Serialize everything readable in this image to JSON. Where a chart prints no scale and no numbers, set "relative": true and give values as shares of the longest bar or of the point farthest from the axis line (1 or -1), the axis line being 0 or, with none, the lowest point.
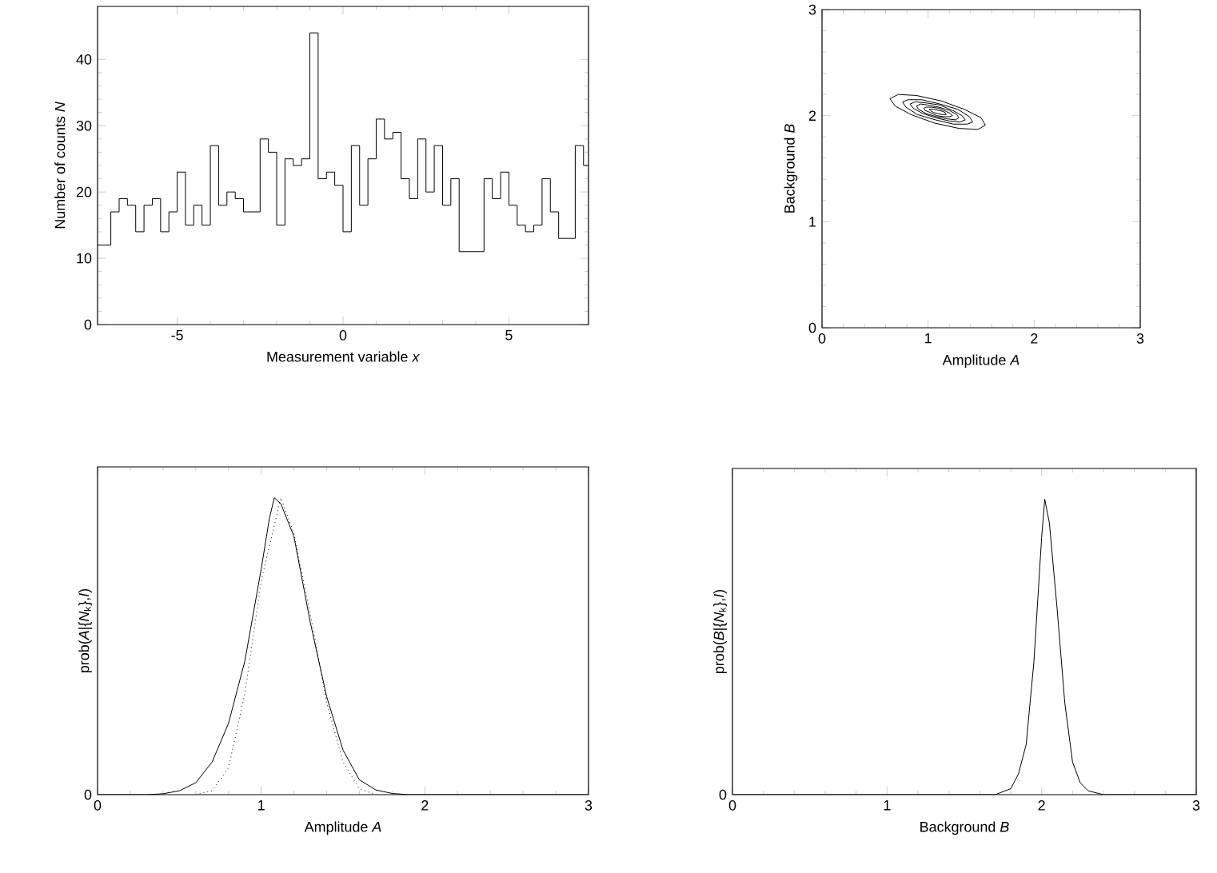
{
  "chart_data": [
    {
      "type": "step",
      "xlabel": "Measurement variable  *x*",
      "ylabel": "Number of counts  *N*",
      "color": "#000000",
      "x": [
        -7.4,
        -7.0,
        -6.75,
        -6.5,
        -6.25,
        -6.0,
        -5.75,
        -5.5,
        -5.25,
        -5.0,
        -4.75,
        -4.5,
        -4.25,
        -4.0,
        -3.75,
        -3.5,
        -3.25,
        -3.0,
        -2.75,
        -2.5,
        -2.25,
        -2.0,
        -1.75,
        -1.5,
        -1.25,
        -1.0,
        -0.75,
        -0.5,
        -0.25,
        0,
        0.25,
        0.5,
        0.75,
        1.0,
        1.25,
        1.5,
        1.75,
        2.0,
        2.25,
        2.5,
        2.75,
        3.0,
        3.25,
        3.5,
        3.75,
        4.0,
        4.25,
        4.5,
        4.75,
        5.0,
        5.25,
        5.5,
        5.75,
        6.0,
        6.25,
        6.5,
        6.75,
        7.0,
        7.25,
        7.4
      ],
      "values": [
        12,
        17,
        19,
        18,
        14,
        18,
        19,
        14,
        17,
        23,
        15,
        18,
        15,
        27,
        18,
        20,
        19,
        17,
        17,
        28,
        26,
        15,
        25,
        24,
        25,
        44,
        22,
        23,
        21,
        14,
        27,
        18,
        25,
        31,
        28,
        29,
        22,
        19,
        28,
        20,
        27,
        18,
        22,
        11,
        11,
        11,
        22,
        19,
        23,
        18,
        15,
        14,
        15,
        22,
        17,
        13,
        13,
        27,
        24,
        24
      ],
      "xlim": [
        -7.4,
        7.4
      ],
      "ylim": [
        0,
        48
      ],
      "xticks": [
        -5,
        0,
        5
      ],
      "yticks": [
        0,
        10,
        20,
        30,
        40
      ]
    },
    {
      "type": "line",
      "xlabel": "Amplitude  *A*",
      "ylabel": "Background  *B*",
      "xlim": [
        0,
        3
      ],
      "ylim": [
        0,
        3
      ],
      "xticks": [
        0,
        1,
        2,
        3
      ],
      "yticks": [
        0,
        1,
        2,
        3
      ],
      "series": [
        {
          "color": "#000000",
          "x": [
            0.64,
            0.72,
            0.89,
            1.12,
            1.34,
            1.5,
            1.54
          ],
          "values": [
            2.16,
            2.2,
            2.19,
            2.14,
            2.06,
            1.98,
            1.91
          ]
        },
        {
          "color": "#000000",
          "x": [
            0.64,
            0.69,
            0.84,
            1.06,
            1.29,
            1.47,
            1.54
          ],
          "values": [
            2.16,
            2.09,
            2.01,
            1.93,
            1.88,
            1.87,
            1.91
          ]
        },
        {
          "color": "#000000",
          "x": [
            0.76,
            0.81,
            0.94,
            1.11,
            1.28,
            1.39,
            1.42
          ],
          "values": [
            2.13,
            2.15,
            2.15,
            2.11,
            2.06,
            1.99,
            1.94
          ]
        },
        {
          "color": "#000000",
          "x": [
            0.76,
            0.79,
            0.9,
            1.07,
            1.24,
            1.37,
            1.42
          ],
          "values": [
            2.13,
            2.08,
            2.01,
            1.96,
            1.92,
            1.92,
            1.94
          ]
        },
        {
          "color": "#000000",
          "x": [
            0.83,
            0.88,
            0.98,
            1.11,
            1.23,
            1.32,
            1.35
          ],
          "values": [
            2.11,
            2.13,
            2.12,
            2.1,
            2.05,
            2.0,
            1.96
          ]
        },
        {
          "color": "#000000",
          "x": [
            0.83,
            0.86,
            0.95,
            1.07,
            1.2,
            1.3,
            1.35
          ],
          "values": [
            2.11,
            2.07,
            2.02,
            1.98,
            1.95,
            1.94,
            1.96
          ]
        },
        {
          "color": "#000000",
          "x": [
            0.89,
            0.93,
            1.0,
            1.1,
            1.2,
            1.27,
            1.29
          ],
          "values": [
            2.09,
            2.11,
            2.1,
            2.08,
            2.05,
            2.01,
            1.98
          ]
        },
        {
          "color": "#000000",
          "x": [
            0.89,
            0.91,
            0.98,
            1.08,
            1.18,
            1.26,
            1.29
          ],
          "values": [
            2.09,
            2.06,
            2.02,
            1.99,
            1.97,
            1.96,
            1.98
          ]
        },
        {
          "color": "#000000",
          "x": [
            0.96,
            0.98,
            1.03,
            1.1,
            1.17,
            1.21,
            1.23
          ],
          "values": [
            2.07,
            2.08,
            2.08,
            2.07,
            2.04,
            2.02,
            2.0
          ]
        },
        {
          "color": "#000000",
          "x": [
            0.96,
            0.97,
            1.02,
            1.08,
            1.15,
            1.2,
            1.23
          ],
          "values": [
            2.07,
            2.05,
            2.03,
            2.0,
            1.99,
            1.99,
            2.0
          ]
        },
        {
          "color": "#000000",
          "x": [
            1.01,
            1.02,
            1.05,
            1.1,
            1.14,
            1.16,
            1.17
          ],
          "values": [
            2.06,
            2.06,
            2.06,
            2.05,
            2.04,
            2.03,
            2.01
          ]
        },
        {
          "color": "#000000",
          "x": [
            1.01,
            1.02,
            1.05,
            1.09,
            1.13,
            1.16,
            1.17
          ],
          "values": [
            2.06,
            2.05,
            2.03,
            2.02,
            2.01,
            2.01,
            2.01
          ]
        }
      ]
    },
    {
      "type": "line",
      "relative": true,
      "xlabel": "Amplitude  *A*",
      "ylabel": "prob(*A*|{*N*$_{k}$},*I*)",
      "xlim": [
        0,
        3
      ],
      "xticks": [
        0,
        1,
        2,
        3
      ],
      "annotations": [
        "0"
      ],
      "series": [
        {
          "color": "#000000",
          "line_style": "solid",
          "x": [
            0,
            0.3,
            0.4,
            0.5,
            0.6,
            0.7,
            0.8,
            0.9,
            1.0,
            1.05,
            1.08,
            1.12,
            1.2,
            1.3,
            1.4,
            1.5,
            1.6,
            1.7,
            1.8,
            1.9,
            3
          ],
          "values": [
            0,
            0,
            0.003,
            0.013,
            0.04,
            0.11,
            0.24,
            0.45,
            0.76,
            0.93,
            1,
            0.98,
            0.87,
            0.58,
            0.33,
            0.15,
            0.05,
            0.016,
            0.004,
            0,
            0
          ]
        },
        {
          "color": "#000000",
          "line_style": "dotted",
          "x": [
            0.6,
            0.7,
            0.8,
            0.9,
            1.0,
            1.12,
            1.2,
            1.3,
            1.4,
            1.5,
            1.6,
            1.7
          ],
          "values": [
            0,
            0.013,
            0.09,
            0.34,
            0.72,
            1,
            0.88,
            0.61,
            0.31,
            0.11,
            0.02,
            0
          ]
        }
      ]
    },
    {
      "type": "line",
      "relative": true,
      "xlabel": "Background  *B*",
      "ylabel": "prob(*B*|{*N*$_{k}$},*I*)",
      "xlim": [
        0,
        3
      ],
      "xticks": [
        0,
        1,
        2,
        3
      ],
      "annotations": [
        "0"
      ],
      "series": [
        {
          "color": "#000000",
          "line_style": "solid",
          "x": [
            0,
            1.7,
            1.8,
            1.85,
            1.9,
            1.95,
            2.0,
            2.02,
            2.05,
            2.1,
            2.15,
            2.2,
            2.25,
            2.3,
            2.4,
            3
          ],
          "values": [
            0,
            0,
            0.02,
            0.07,
            0.17,
            0.45,
            0.87,
            1,
            0.92,
            0.63,
            0.31,
            0.11,
            0.04,
            0.013,
            0,
            0
          ]
        }
      ]
    }
  ]
}
